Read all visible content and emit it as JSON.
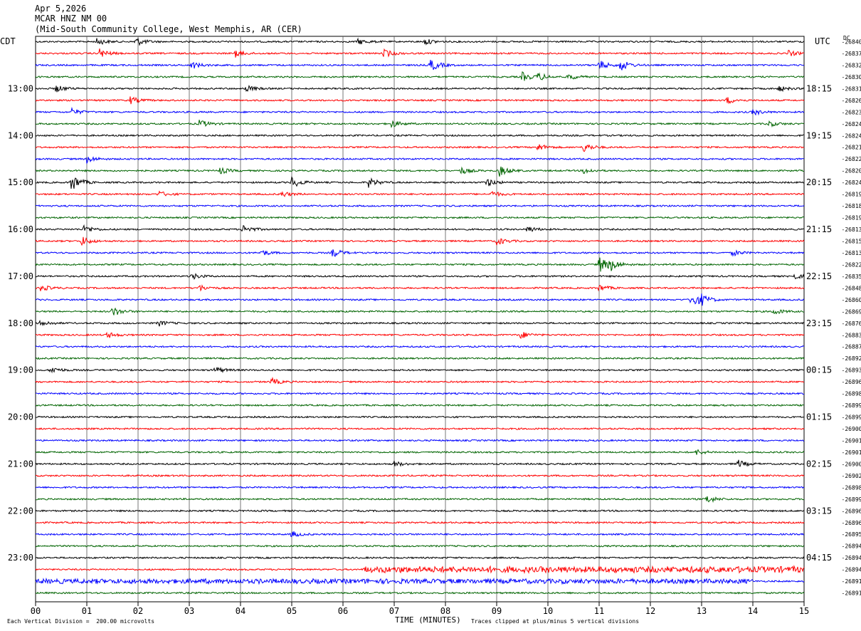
{
  "header": {
    "date": "Apr 5,2026",
    "station": "MCAR HNZ NM 00",
    "location": "(Mid-South Community College, West Memphis, AR (CER)"
  },
  "left_axis_label": "CDT",
  "right_axis_label": "UTC",
  "right_col_label": "DC",
  "footer": {
    "scale_note": "Each Vertical Division =  200.00 microvolts",
    "xlabel": "TIME (MINUTES)",
    "clip_note": "Traces clipped at plus/minus 5 vertical divisions"
  },
  "colors": {
    "trace_cycle": [
      "#000000",
      "#ff0000",
      "#0000ff",
      "#006400"
    ],
    "grid": "#000000"
  },
  "chart_data": {
    "type": "line",
    "title": "MCAR HNZ NM 00",
    "xlabel": "TIME (MINUTES)",
    "xlim": [
      0,
      15
    ],
    "x_ticks": [
      "00",
      "01",
      "02",
      "03",
      "04",
      "05",
      "06",
      "07",
      "08",
      "09",
      "10",
      "11",
      "12",
      "13",
      "14",
      "15"
    ],
    "left_time_labels": [
      "13:00",
      "14:00",
      "15:00",
      "16:00",
      "17:00",
      "18:00",
      "19:00",
      "20:00",
      "21:00",
      "22:00",
      "23:00"
    ],
    "right_time_labels": [
      "18:15",
      "19:15",
      "20:15",
      "21:15",
      "22:15",
      "23:15",
      "00:15",
      "01:15",
      "02:15",
      "03:15",
      "04:15"
    ],
    "trace_count": 48,
    "dc_offsets": [
      "-26840",
      "-26837",
      "-26832",
      "-26830",
      "-26831",
      "-26826",
      "-26823",
      "-26824",
      "-26824",
      "-26821",
      "-26822",
      "-26820",
      "-26824",
      "-26819",
      "-26818",
      "-26819",
      "-26813",
      "-26815",
      "-26813",
      "-26822",
      "-26835",
      "-26848",
      "-26860",
      "-26869",
      "-26876",
      "-26883",
      "-26887",
      "-26892",
      "-26893",
      "-26896",
      "-26898",
      "-26899",
      "-26899",
      "-26900",
      "-26901",
      "-26901",
      "-26900",
      "-26902",
      "-26898",
      "-26899",
      "-26896",
      "-26896",
      "-26895",
      "-26894",
      "-26894",
      "-26894",
      "-26891",
      "-26891"
    ],
    "events": [
      {
        "trace": 0,
        "minute": 1.2,
        "amp": 1.5
      },
      {
        "trace": 0,
        "minute": 1.95,
        "amp": 2
      },
      {
        "trace": 0,
        "minute": 6.3,
        "amp": 1.3
      },
      {
        "trace": 0,
        "minute": 7.6,
        "amp": 1.3
      },
      {
        "trace": 1,
        "minute": 1.25,
        "amp": 2
      },
      {
        "trace": 1,
        "minute": 3.9,
        "amp": 1.5
      },
      {
        "trace": 1,
        "minute": 6.8,
        "amp": 1.8
      },
      {
        "trace": 1,
        "minute": 14.7,
        "amp": 1.3
      },
      {
        "trace": 2,
        "minute": 3.05,
        "amp": 1.6
      },
      {
        "trace": 2,
        "minute": 7.7,
        "amp": 3
      },
      {
        "trace": 2,
        "minute": 11.0,
        "amp": 2
      },
      {
        "trace": 2,
        "minute": 11.4,
        "amp": 2.8
      },
      {
        "trace": 3,
        "minute": 9.5,
        "amp": 2
      },
      {
        "trace": 3,
        "minute": 9.8,
        "amp": 1.7
      },
      {
        "trace": 3,
        "minute": 10.4,
        "amp": 1.4
      },
      {
        "trace": 4,
        "minute": 0.4,
        "amp": 1.6
      },
      {
        "trace": 4,
        "minute": 4.1,
        "amp": 1.5
      },
      {
        "trace": 4,
        "minute": 14.5,
        "amp": 1.2
      },
      {
        "trace": 5,
        "minute": 1.85,
        "amp": 1.6
      },
      {
        "trace": 5,
        "minute": 13.5,
        "amp": 1.5
      },
      {
        "trace": 6,
        "minute": 0.7,
        "amp": 1.5
      },
      {
        "trace": 6,
        "minute": 14.0,
        "amp": 1.4
      },
      {
        "trace": 7,
        "minute": 3.2,
        "amp": 1.7
      },
      {
        "trace": 7,
        "minute": 6.95,
        "amp": 1.6
      },
      {
        "trace": 7,
        "minute": 14.3,
        "amp": 1.3
      },
      {
        "trace": 9,
        "minute": 9.8,
        "amp": 1.6
      },
      {
        "trace": 9,
        "minute": 10.7,
        "amp": 2
      },
      {
        "trace": 10,
        "minute": 1.0,
        "amp": 1.6
      },
      {
        "trace": 11,
        "minute": 3.6,
        "amp": 1.4
      },
      {
        "trace": 11,
        "minute": 8.3,
        "amp": 1.5
      },
      {
        "trace": 11,
        "minute": 9.05,
        "amp": 2.4
      },
      {
        "trace": 11,
        "minute": 10.7,
        "amp": 1.2
      },
      {
        "trace": 12,
        "minute": 0.7,
        "amp": 4
      },
      {
        "trace": 12,
        "minute": 5.0,
        "amp": 2.5
      },
      {
        "trace": 12,
        "minute": 6.5,
        "amp": 2
      },
      {
        "trace": 12,
        "minute": 8.8,
        "amp": 1.8
      },
      {
        "trace": 13,
        "minute": 2.4,
        "amp": 1.3
      },
      {
        "trace": 13,
        "minute": 4.8,
        "amp": 1.3
      },
      {
        "trace": 13,
        "minute": 8.9,
        "amp": 1.3
      },
      {
        "trace": 16,
        "minute": 0.95,
        "amp": 1.8
      },
      {
        "trace": 16,
        "minute": 4.05,
        "amp": 2
      },
      {
        "trace": 16,
        "minute": 9.6,
        "amp": 1.3
      },
      {
        "trace": 17,
        "minute": 0.9,
        "amp": 2
      },
      {
        "trace": 17,
        "minute": 9.0,
        "amp": 1.8
      },
      {
        "trace": 18,
        "minute": 4.4,
        "amp": 1.3
      },
      {
        "trace": 18,
        "minute": 5.8,
        "amp": 2
      },
      {
        "trace": 18,
        "minute": 13.6,
        "amp": 1.3
      },
      {
        "trace": 19,
        "minute": 11.0,
        "amp": 3.6
      },
      {
        "trace": 19,
        "minute": 11.2,
        "amp": 2.5
      },
      {
        "trace": 20,
        "minute": 3.05,
        "amp": 1.4
      },
      {
        "trace": 20,
        "minute": 14.8,
        "amp": 1.2
      },
      {
        "trace": 21,
        "minute": 0.1,
        "amp": 1.4
      },
      {
        "trace": 21,
        "minute": 3.2,
        "amp": 1.3
      },
      {
        "trace": 21,
        "minute": 11.0,
        "amp": 1.4
      },
      {
        "trace": 22,
        "minute": 12.8,
        "amp": 4
      },
      {
        "trace": 22,
        "minute": 13.0,
        "amp": 1.6
      },
      {
        "trace": 23,
        "minute": 1.5,
        "amp": 2.2
      },
      {
        "trace": 23,
        "minute": 14.4,
        "amp": 1.4
      },
      {
        "trace": 24,
        "minute": 0.1,
        "amp": 1.5
      },
      {
        "trace": 24,
        "minute": 2.4,
        "amp": 1.2
      },
      {
        "trace": 25,
        "minute": 1.4,
        "amp": 1.3
      },
      {
        "trace": 25,
        "minute": 9.45,
        "amp": 1.7
      },
      {
        "trace": 28,
        "minute": 0.3,
        "amp": 1.6
      },
      {
        "trace": 28,
        "minute": 3.5,
        "amp": 1.5
      },
      {
        "trace": 29,
        "minute": 4.6,
        "amp": 1.6
      },
      {
        "trace": 35,
        "minute": 12.9,
        "amp": 1.2
      },
      {
        "trace": 36,
        "minute": 7.0,
        "amp": 1.2
      },
      {
        "trace": 36,
        "minute": 13.7,
        "amp": 1.8
      },
      {
        "trace": 39,
        "minute": 13.1,
        "amp": 1.8
      },
      {
        "trace": 42,
        "minute": 5.0,
        "amp": 1.3
      }
    ],
    "noise_bands": [
      {
        "trace": 45,
        "from": 6.4,
        "to": 15,
        "amp": 1.6
      },
      {
        "trace": 46,
        "from": 0,
        "to": 14,
        "amp": 1.1
      }
    ]
  }
}
